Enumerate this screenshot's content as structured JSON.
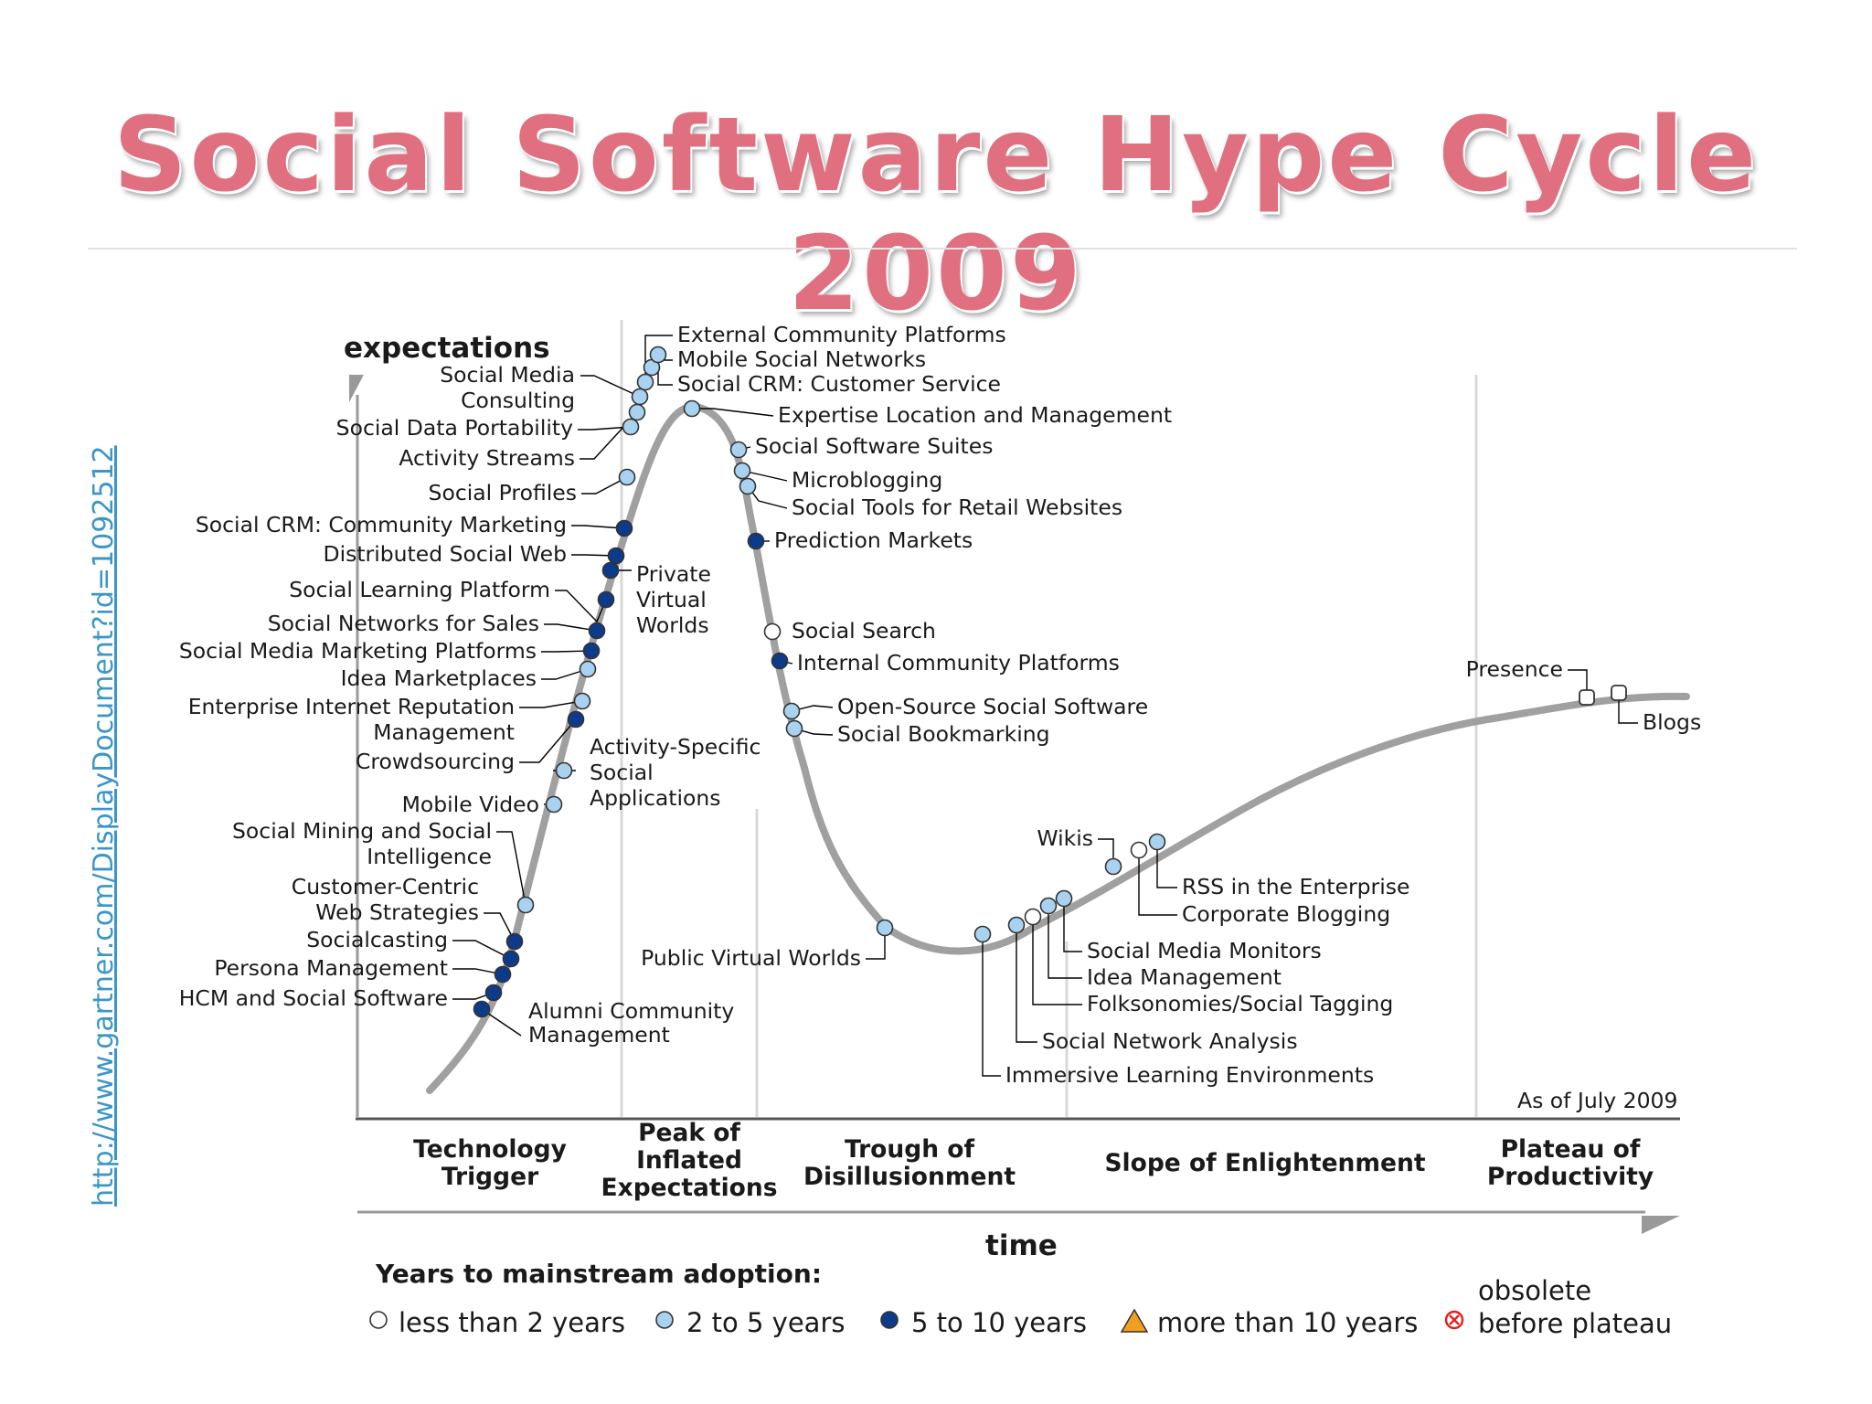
{
  "title": "Social Software Hype Cycle 2009",
  "source_link": "http://www.gartner.com/DisplayDocument?id=1092512",
  "y_axis_label": "expectations",
  "x_axis_label": "time",
  "as_of": "As of July 2009",
  "phases": [
    {
      "lines": [
        "Technology",
        "Trigger"
      ]
    },
    {
      "lines": [
        "Peak of",
        "Inflated",
        "Expectations"
      ]
    },
    {
      "lines": [
        "Trough of",
        "Disillusionment"
      ]
    },
    {
      "lines": [
        "Slope of Enlightenment"
      ]
    },
    {
      "lines": [
        "Plateau of",
        "Productivity"
      ]
    }
  ],
  "legend": {
    "title": "Years to mainstream adoption:",
    "items": [
      {
        "label": [
          "less than 2 years"
        ],
        "symbol": "white-circle"
      },
      {
        "label": [
          "2 to 5 years"
        ],
        "symbol": "lightblue-circle"
      },
      {
        "label": [
          "5 to 10 years"
        ],
        "symbol": "navy-circle"
      },
      {
        "label": [
          "more than 10 years"
        ],
        "symbol": "orange-triangle"
      },
      {
        "label": [
          "obsolete",
          "before plateau"
        ],
        "symbol": "red-x-circle"
      }
    ]
  },
  "colors": {
    "title": "#e0707f",
    "curve": "#a0a0a0",
    "less_than_2": "#ffffff",
    "two_to_five": "#a8d2f0",
    "five_to_ten": "#0d3b8a",
    "more_than_10": "#f0a020",
    "obsolete": "#e02020",
    "link": "#3b96c8"
  },
  "technologies": [
    {
      "lines": [
        "External Community Platforms"
      ],
      "adoption": "2-5"
    },
    {
      "lines": [
        "Mobile Social Networks"
      ],
      "adoption": "2-5"
    },
    {
      "lines": [
        "Social CRM: Customer Service"
      ],
      "adoption": "2-5"
    },
    {
      "lines": [
        "Expertise Location and Management"
      ],
      "adoption": "2-5"
    },
    {
      "lines": [
        "Social Software Suites"
      ],
      "adoption": "2-5"
    },
    {
      "lines": [
        "Microblogging"
      ],
      "adoption": "2-5"
    },
    {
      "lines": [
        "Social Tools for Retail Websites"
      ],
      "adoption": "2-5"
    },
    {
      "lines": [
        "Prediction Markets"
      ],
      "adoption": "5-10"
    },
    {
      "lines": [
        "Social Search"
      ],
      "adoption": "<2"
    },
    {
      "lines": [
        "Internal Community Platforms"
      ],
      "adoption": "5-10"
    },
    {
      "lines": [
        "Open-Source Social Software"
      ],
      "adoption": "2-5"
    },
    {
      "lines": [
        "Social Bookmarking"
      ],
      "adoption": "2-5"
    },
    {
      "lines": [
        "Social Media",
        "Consulting"
      ],
      "adoption": "2-5"
    },
    {
      "lines": [
        "Social Data Portability"
      ],
      "adoption": "2-5"
    },
    {
      "lines": [
        "Activity Streams"
      ],
      "adoption": "2-5"
    },
    {
      "lines": [
        "Social Profiles"
      ],
      "adoption": "2-5"
    },
    {
      "lines": [
        "Social CRM: Community Marketing"
      ],
      "adoption": "5-10"
    },
    {
      "lines": [
        "Distributed Social Web"
      ],
      "adoption": "5-10"
    },
    {
      "lines": [
        "Private",
        "Virtual",
        "Worlds"
      ],
      "adoption": "5-10"
    },
    {
      "lines": [
        "Social Learning Platform"
      ],
      "adoption": "5-10"
    },
    {
      "lines": [
        "Social Networks for Sales"
      ],
      "adoption": "5-10"
    },
    {
      "lines": [
        "Social Media Marketing Platforms"
      ],
      "adoption": "5-10"
    },
    {
      "lines": [
        "Idea Marketplaces"
      ],
      "adoption": "2-5"
    },
    {
      "lines": [
        "Enterprise Internet Reputation",
        "Management"
      ],
      "adoption": "2-5"
    },
    {
      "lines": [
        "Crowdsourcing"
      ],
      "adoption": "5-10"
    },
    {
      "lines": [
        "Activity-Specific",
        "Social",
        "Applications"
      ],
      "adoption": "2-5"
    },
    {
      "lines": [
        "Mobile Video"
      ],
      "adoption": "2-5"
    },
    {
      "lines": [
        "Social Mining and Social",
        "Intelligence"
      ],
      "adoption": "2-5"
    },
    {
      "lines": [
        "Customer-Centric",
        "Web Strategies"
      ],
      "adoption": "5-10"
    },
    {
      "lines": [
        "Socialcasting"
      ],
      "adoption": "5-10"
    },
    {
      "lines": [
        "Persona Management"
      ],
      "adoption": "5-10"
    },
    {
      "lines": [
        "HCM and Social Software"
      ],
      "adoption": "5-10"
    },
    {
      "lines": [
        "Alumni Community",
        "Management"
      ],
      "adoption": "5-10"
    },
    {
      "lines": [
        "Public Virtual Worlds"
      ],
      "adoption": "2-5"
    },
    {
      "lines": [
        "Immersive Learning Environments"
      ],
      "adoption": "2-5"
    },
    {
      "lines": [
        "Social Network Analysis"
      ],
      "adoption": "2-5"
    },
    {
      "lines": [
        "Folksonomies/Social Tagging"
      ],
      "adoption": "<2"
    },
    {
      "lines": [
        "Idea Management"
      ],
      "adoption": "2-5"
    },
    {
      "lines": [
        "Social Media Monitors"
      ],
      "adoption": "2-5"
    },
    {
      "lines": [
        "Wikis"
      ],
      "adoption": "2-5"
    },
    {
      "lines": [
        "Corporate Blogging"
      ],
      "adoption": "<2"
    },
    {
      "lines": [
        "RSS in the Enterprise"
      ],
      "adoption": "2-5"
    },
    {
      "lines": [
        "Presence"
      ],
      "adoption": "<2"
    },
    {
      "lines": [
        "Blogs"
      ],
      "adoption": "<2"
    }
  ]
}
